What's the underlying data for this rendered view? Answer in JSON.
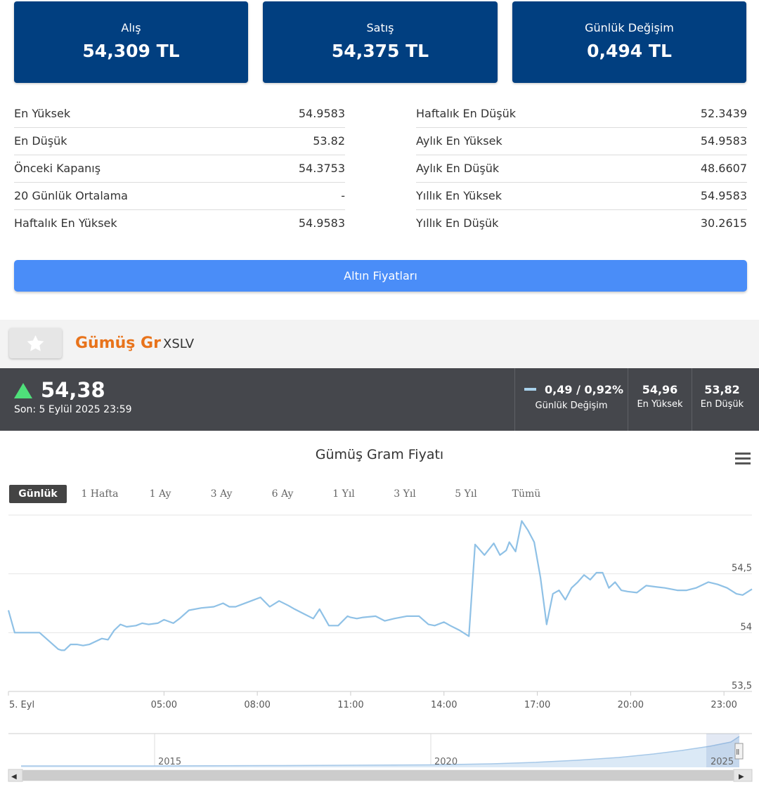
{
  "cards": [
    {
      "label": "Alış",
      "value": "54,309 TL"
    },
    {
      "label": "Satış",
      "value": "54,375 TL"
    },
    {
      "label": "Günlük Değişim",
      "value": "0,494 TL"
    }
  ],
  "stats_left": [
    {
      "label": "En Yüksek",
      "value": "54.9583"
    },
    {
      "label": "En Düşük",
      "value": "53.82"
    },
    {
      "label": "Önceki Kapanış",
      "value": "54.3753"
    },
    {
      "label": "20 Günlük Ortalama",
      "value": "-"
    },
    {
      "label": "Haftalık En Yüksek",
      "value": "54.9583"
    }
  ],
  "stats_right": [
    {
      "label": "Haftalık En Düşük",
      "value": "52.3439"
    },
    {
      "label": "Aylık En Yüksek",
      "value": "54.9583"
    },
    {
      "label": "Aylık En Düşük",
      "value": "48.6607"
    },
    {
      "label": "Yıllık En Yüksek",
      "value": "54.9583"
    },
    {
      "label": "Yıllık En Düşük",
      "value": "30.2615"
    }
  ],
  "gold_button": "Altın Fiyatları",
  "asset": {
    "name": "Gümüş Gr",
    "code": "XSLV"
  },
  "quote": {
    "price": "54,38",
    "last_update": "Son: 5 Eylül 2025 23:59",
    "change": "0,49 / 0,92%",
    "change_label": "Günlük Değişim",
    "high": "54,96",
    "high_label": "En Yüksek",
    "low": "53,82",
    "low_label": "En Düşük",
    "up_color": "#4fe07a",
    "accent_color": "#e8731b",
    "card_color": "#013f80",
    "button_color": "#4a8df8",
    "line_color": "#8fc1e6"
  },
  "range_buttons": [
    "Günlük",
    "1 Hafta",
    "1 Ay",
    "3 Ay",
    "6 Ay",
    "1 Yıl",
    "3 Yıl",
    "5 Yıl",
    "Tümü"
  ],
  "range_selected": "Günlük",
  "chart_data": {
    "type": "line",
    "title": "Gümüş Gram Fiyatı",
    "xlabel": "",
    "ylabel": "",
    "x_ticks": [
      {
        "label": "5. Eyl",
        "h": 0
      },
      {
        "label": "05:00",
        "h": 5
      },
      {
        "label": "08:00",
        "h": 8
      },
      {
        "label": "11:00",
        "h": 11
      },
      {
        "label": "14:00",
        "h": 14
      },
      {
        "label": "17:00",
        "h": 17
      },
      {
        "label": "20:00",
        "h": 20
      },
      {
        "label": "23:00",
        "h": 23
      }
    ],
    "y_ticks": [
      53.5,
      54,
      54.5
    ],
    "y_tick_labels": [
      "53,5",
      "54",
      "54,5"
    ],
    "ylim": [
      53.5,
      55.0
    ],
    "xlim_hours": [
      0,
      23.9
    ],
    "grid": true,
    "series": [
      {
        "x": [
          0,
          0.2,
          0.8,
          1.0,
          1.6,
          1.7,
          1.8,
          2.0,
          2.2,
          2.4,
          2.6,
          3.0,
          3.2,
          3.4,
          3.6,
          3.8,
          4.1,
          4.3,
          4.5,
          4.8,
          5.0,
          5.3,
          5.5,
          5.8,
          6.2,
          6.6,
          6.9,
          7.1,
          7.3,
          7.5,
          7.8,
          8.1,
          8.4,
          8.7,
          9.0,
          9.2,
          9.5,
          9.8,
          10.0,
          10.3,
          10.6,
          10.9,
          11.0,
          11.2,
          11.4,
          11.8,
          12.1,
          12.4,
          12.8,
          13.2,
          13.5,
          13.7,
          14.0,
          14.2,
          14.5,
          14.8,
          15.0,
          15.3,
          15.6,
          15.8,
          16.0,
          16.1,
          16.3,
          16.5,
          16.7,
          16.9,
          17.1,
          17.3,
          17.5,
          17.7,
          17.9,
          18.1,
          18.3,
          18.5,
          18.7,
          18.9,
          19.1,
          19.3,
          19.5,
          19.7,
          19.9,
          20.2,
          20.5,
          20.8,
          21.1,
          21.5,
          21.8,
          22.1,
          22.5,
          22.8,
          23.1,
          23.4,
          23.6,
          23.9
        ],
        "values": [
          54.19,
          54.0,
          54.0,
          54.0,
          53.86,
          53.85,
          53.85,
          53.9,
          53.9,
          53.89,
          53.9,
          53.95,
          53.94,
          54.02,
          54.07,
          54.05,
          54.06,
          54.08,
          54.07,
          54.08,
          54.11,
          54.08,
          54.12,
          54.19,
          54.21,
          54.22,
          54.25,
          54.22,
          54.22,
          54.24,
          54.27,
          54.3,
          54.22,
          54.27,
          54.23,
          54.2,
          54.16,
          54.12,
          54.2,
          54.06,
          54.06,
          54.14,
          54.13,
          54.12,
          54.13,
          54.14,
          54.1,
          54.12,
          54.14,
          54.14,
          54.07,
          54.06,
          54.09,
          54.06,
          54.02,
          53.97,
          54.75,
          54.66,
          54.76,
          54.66,
          54.7,
          54.77,
          54.69,
          54.95,
          54.87,
          54.77,
          54.47,
          54.07,
          54.33,
          54.36,
          54.28,
          54.38,
          54.43,
          54.49,
          54.45,
          54.51,
          54.51,
          54.38,
          54.43,
          54.36,
          54.35,
          54.34,
          54.4,
          54.39,
          54.38,
          54.36,
          54.36,
          54.38,
          54.43,
          54.41,
          54.38,
          54.33,
          54.32,
          54.37
        ]
      }
    ]
  },
  "navigator": {
    "labels": [
      "2015",
      "2020",
      "2025"
    ],
    "handle_symbol": "Ⅱ",
    "left_arrow": "◀",
    "right_arrow": "▶"
  }
}
